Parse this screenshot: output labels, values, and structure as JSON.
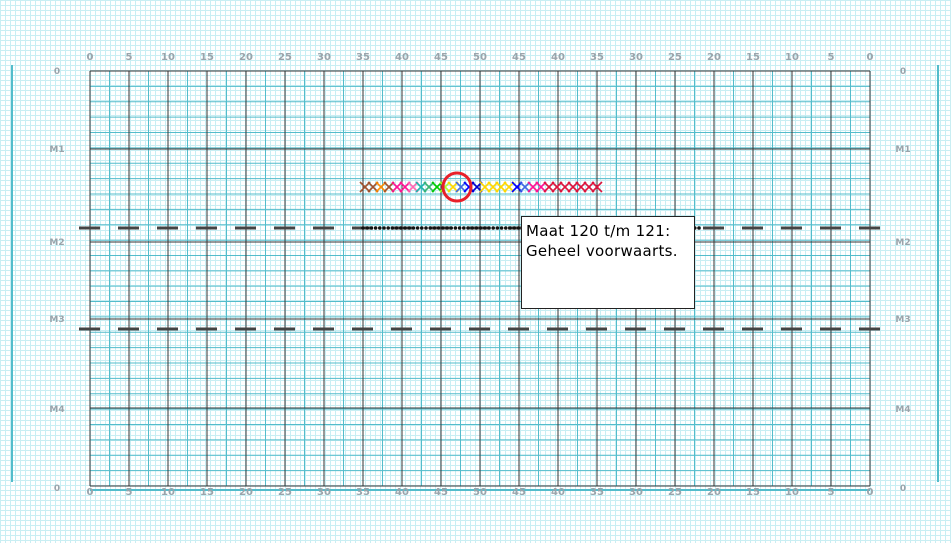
{
  "field": {
    "top_numbers": [
      "0",
      "5",
      "10",
      "15",
      "20",
      "25",
      "30",
      "35",
      "40",
      "45",
      "50",
      "45",
      "40",
      "35",
      "30",
      "25",
      "20",
      "15",
      "10",
      "5",
      "0"
    ],
    "bottom_numbers": [
      "0",
      "5",
      "10",
      "15",
      "20",
      "25",
      "30",
      "35",
      "40",
      "45",
      "50",
      "45",
      "40",
      "35",
      "30",
      "25",
      "20",
      "15",
      "10",
      "5",
      "0"
    ],
    "left_markers": [
      "0",
      "M1",
      "M2",
      "M3",
      "M4",
      "0"
    ],
    "right_markers": [
      "0",
      "M1",
      "M2",
      "M3",
      "M4",
      "0"
    ],
    "colors": {
      "background_grid": "#c9eef3",
      "minor_grid": "#53bccb",
      "major_grid": "#333333",
      "dashed_lines": "#444444",
      "highlight_circle": "#e8202a"
    }
  },
  "formation": {
    "marker_colors": [
      "#a0522d",
      "#a0522d",
      "#ff8c00",
      "#a0522d",
      "#ff1493",
      "#ff1493",
      "#ff69b4",
      "#20b2aa",
      "#3cb371",
      "#00cc00",
      "#adff2f",
      "#ffd700",
      "#4169e1",
      "#0000ff",
      "#0000cd",
      "#ffd700",
      "#ffd700",
      "#ffd700",
      "#ffd700",
      "#0000ff",
      "#4169e1",
      "#ff1493",
      "#ff1493",
      "#dc143c",
      "#dc143c",
      "#dc143c",
      "#dc143c",
      "#dc143c",
      "#dc143c",
      "#dc143c"
    ],
    "highlight": "selected-member-circle"
  },
  "info": {
    "line1": "Maat 120 t/m 121:",
    "line2": "Geheel voorwaarts."
  }
}
